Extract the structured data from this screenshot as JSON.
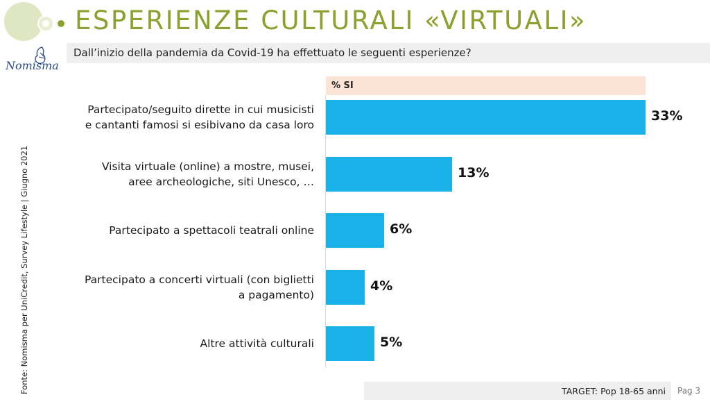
{
  "header": {
    "title": "ESPERIENZE CULTURALI «VIRTUALI»",
    "subtitle": "Dall’inizio della pandemia da Covid-19 ha effettuato le seguenti esperienze?",
    "logo_text": "Nomisma"
  },
  "source": "Fonte: Nomisma per UniCredit, Survey Lifestyle | Giugno 2021",
  "colors": {
    "title": "#8aa12f",
    "bar": "#1ab0e8",
    "header_band": "#fbe3d6",
    "deco_circle": "#dfe7c2"
  },
  "chart_data": {
    "type": "bar",
    "orientation": "horizontal",
    "column_header": "% SI",
    "categories": [
      [
        "Partecipato/seguito dirette in cui musicisti",
        "e cantanti famosi si esibivano da casa loro"
      ],
      [
        "Visita virtuale (online) a mostre, musei,",
        "aree archeologiche, siti Unesco, …"
      ],
      [
        "Partecipato a spettacoli teatrali online"
      ],
      [
        "Partecipato a concerti virtuali (con biglietti",
        "a pagamento)"
      ],
      [
        "Altre attività culturali"
      ]
    ],
    "values": [
      33,
      13,
      6,
      4,
      5
    ],
    "value_labels": [
      "33%",
      "13%",
      "6%",
      "4%",
      "5%"
    ],
    "xlim": [
      0,
      33
    ],
    "grid": false,
    "legend": "none"
  },
  "footer": {
    "target": "TARGET: Pop 18-65 anni",
    "page": "Pag 3"
  }
}
